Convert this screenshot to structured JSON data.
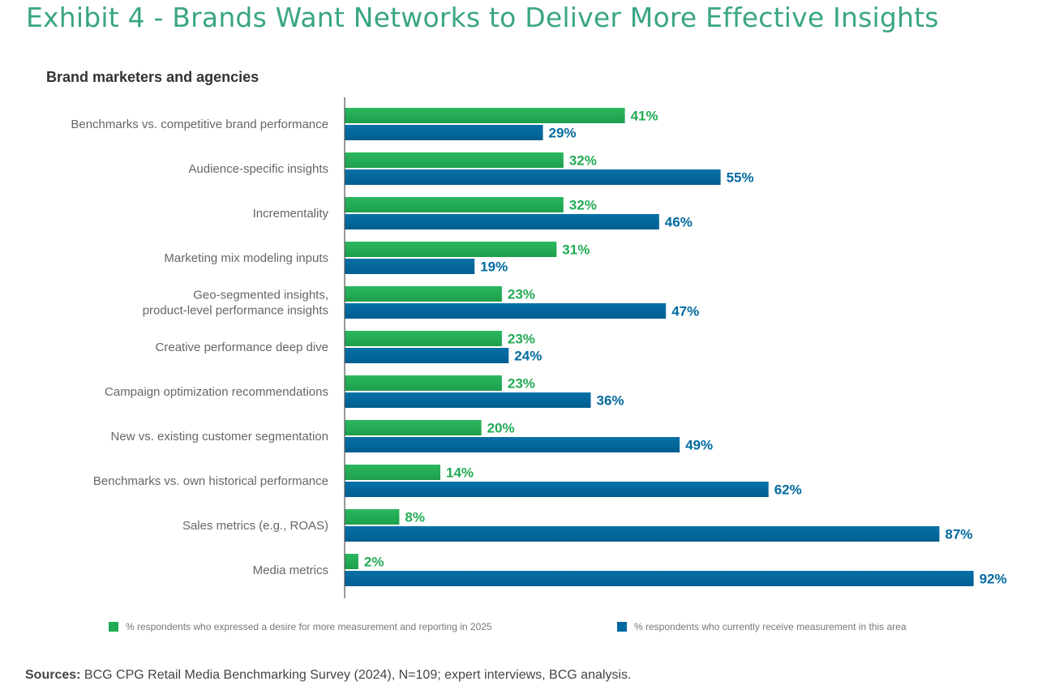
{
  "page": {
    "title": "Exhibit 4 - Brands Want Networks to Deliver More Effective Insights",
    "subtitle": "Brand marketers and agencies",
    "sources_label": "Sources:",
    "sources_text": " BCG CPG Retail Media Benchmarking Survey (2024), N=109; expert interviews, BCG analysis."
  },
  "colors": {
    "title": "#3aa585",
    "desire": "#22ab55",
    "current": "#006aa0",
    "axis": "#555555"
  },
  "chart_data": {
    "type": "bar",
    "orientation": "horizontal",
    "title": "Brand marketers and agencies",
    "xlabel": "",
    "ylabel": "",
    "xlim": [
      0,
      100
    ],
    "grid": false,
    "legend_position": "bottom",
    "categories": [
      [
        "Benchmarks vs. competitive brand performance"
      ],
      [
        "Audience-specific insights"
      ],
      [
        "Incrementality"
      ],
      [
        "Marketing mix modeling inputs"
      ],
      [
        "Geo-segmented insights,",
        "product-level performance insights"
      ],
      [
        "Creative performance deep dive"
      ],
      [
        "Campaign optimization recommendations"
      ],
      [
        "New vs. existing customer segmentation"
      ],
      [
        "Benchmarks vs. own historical performance"
      ],
      [
        "Sales metrics (e.g., ROAS)"
      ],
      [
        "Media metrics"
      ]
    ],
    "series": [
      {
        "name": "% respondents who expressed a desire for more measurement and reporting in 2025",
        "color": "#22ab55",
        "values": [
          41,
          32,
          32,
          31,
          23,
          23,
          23,
          20,
          14,
          8,
          2
        ],
        "labels": [
          "41%",
          "32%",
          "32%",
          "31%",
          "23%",
          "23%",
          "23%",
          "20%",
          "14%",
          "8%",
          "2%"
        ]
      },
      {
        "name": "% respondents who currently receive measurement in this area",
        "color": "#006aa0",
        "values": [
          29,
          55,
          46,
          19,
          47,
          24,
          36,
          49,
          62,
          87,
          92
        ],
        "labels": [
          "29%",
          "55%",
          "46%",
          "19%",
          "47%",
          "24%",
          "36%",
          "49%",
          "62%",
          "87%",
          "92%"
        ]
      }
    ]
  }
}
